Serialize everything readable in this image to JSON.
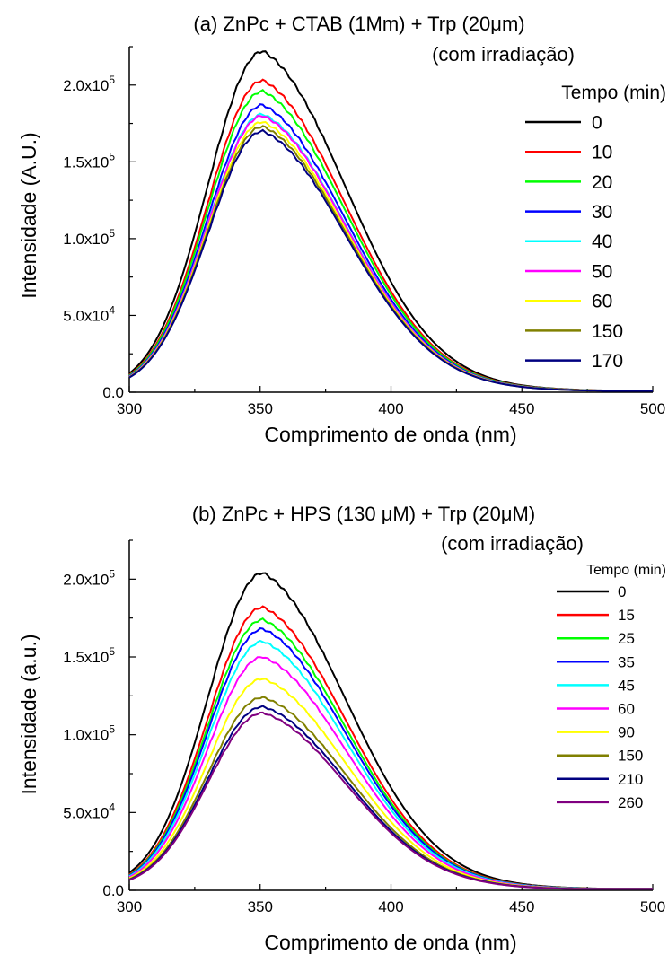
{
  "chart_data": [
    {
      "type": "line",
      "title": "(a) ZnPc + CTAB (1Mm) + Trp (20μm)",
      "subtitle": "(com irradiação)",
      "xlabel": "Comprimento de onda (nm)",
      "ylabel": "Intensidade  (A.U.)",
      "xlim": [
        300,
        500
      ],
      "ylim": [
        0,
        225000
      ],
      "x_ticks": [
        "300",
        "350",
        "400",
        "450",
        "500"
      ],
      "y_ticks": [
        {
          "base": "0.0",
          "exp": ""
        },
        {
          "base": "5.0x10",
          "exp": "4"
        },
        {
          "base": "1.0x10",
          "exp": "5"
        },
        {
          "base": "1.5x10",
          "exp": "5"
        },
        {
          "base": "2.0x10",
          "exp": "5"
        }
      ],
      "grid": false,
      "legend_title": "Tempo (min)",
      "legend_position": "right",
      "series": [
        {
          "name": "0",
          "color": "#000000",
          "peak": 222000
        },
        {
          "name": "10",
          "color": "#ff0000",
          "peak": 203000
        },
        {
          "name": "20",
          "color": "#00ff00",
          "peak": 196000
        },
        {
          "name": "30",
          "color": "#0000ff",
          "peak": 187000
        },
        {
          "name": "40",
          "color": "#00ffff",
          "peak": 181000
        },
        {
          "name": "50",
          "color": "#ff00ff",
          "peak": 180000
        },
        {
          "name": "60",
          "color": "#ffff00",
          "peak": 176000
        },
        {
          "name": "150",
          "color": "#808000",
          "peak": 173000
        },
        {
          "name": "170",
          "color": "#000080",
          "peak": 170000
        }
      ]
    },
    {
      "type": "line",
      "title": "(b) ZnPc + HPS (130 μM) + Trp (20μM)",
      "subtitle": "(com irradiação)",
      "xlabel": "Comprimento de onda (nm)",
      "ylabel": "Intensidade (a.u.)",
      "xlim": [
        300,
        500
      ],
      "ylim": [
        0,
        225000
      ],
      "x_ticks": [
        "300",
        "350",
        "400",
        "450",
        "500"
      ],
      "y_ticks": [
        {
          "base": "0.0",
          "exp": ""
        },
        {
          "base": "5.0x10",
          "exp": "4"
        },
        {
          "base": "1.0x10",
          "exp": "5"
        },
        {
          "base": "1.5x10",
          "exp": "5"
        },
        {
          "base": "2.0x10",
          "exp": "5"
        }
      ],
      "grid": false,
      "legend_title": "Tempo (min)",
      "legend_position": "right",
      "series": [
        {
          "name": "0",
          "color": "#000000",
          "peak": 204000
        },
        {
          "name": "15",
          "color": "#ff0000",
          "peak": 182000
        },
        {
          "name": "25",
          "color": "#00ff00",
          "peak": 174000
        },
        {
          "name": "35",
          "color": "#0000ff",
          "peak": 168000
        },
        {
          "name": "45",
          "color": "#00ffff",
          "peak": 160000
        },
        {
          "name": "60",
          "color": "#ff00ff",
          "peak": 150000
        },
        {
          "name": "90",
          "color": "#ffff00",
          "peak": 136000
        },
        {
          "name": "150",
          "color": "#808000",
          "peak": 124000
        },
        {
          "name": "210",
          "color": "#000080",
          "peak": 118000
        },
        {
          "name": "260",
          "color": "#800080",
          "peak": 114000
        }
      ]
    }
  ]
}
